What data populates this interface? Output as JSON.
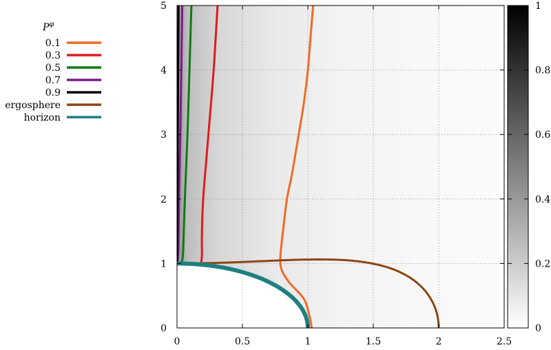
{
  "chart_data": {
    "type": "line",
    "xlim": [
      0,
      2.5
    ],
    "ylim": [
      0,
      5
    ],
    "x_ticks": [
      "0",
      "0.5",
      "1",
      "1.5",
      "2",
      "2.5"
    ],
    "y_ticks": [
      "0",
      "1",
      "2",
      "3",
      "4",
      "5"
    ],
    "grid": true,
    "background": "grayscale density map of P^φ, dark near the axis, fading to white at larger x",
    "colorbar": {
      "range": [
        0,
        1
      ],
      "ticks": [
        "0",
        "0.2",
        "0.4",
        "0.6",
        "0.8",
        "1"
      ],
      "colormap": "white-to-black"
    },
    "legend": {
      "title": "P",
      "title_superscript": "φ",
      "placement": "outside-left"
    },
    "series": [
      {
        "name": "0.1",
        "color": "#f06a26",
        "points": [
          [
            1.03,
            0.0
          ],
          [
            1.01,
            0.2
          ],
          [
            0.97,
            0.45
          ],
          [
            0.86,
            0.7
          ],
          [
            0.8,
            0.9
          ],
          [
            0.79,
            1.1
          ],
          [
            0.81,
            1.5
          ],
          [
            0.84,
            2.0
          ],
          [
            0.88,
            2.4
          ],
          [
            0.93,
            3.0
          ],
          [
            0.97,
            3.5
          ],
          [
            1.0,
            4.0
          ],
          [
            1.02,
            4.5
          ],
          [
            1.04,
            5.0
          ]
        ]
      },
      {
        "name": "0.3",
        "color": "#e01b1b",
        "points": [
          [
            0.0,
            1.0
          ],
          [
            0.1,
            0.995
          ],
          [
            0.17,
            0.98
          ],
          [
            0.19,
            1.1
          ],
          [
            0.19,
            1.4
          ],
          [
            0.2,
            2.0
          ],
          [
            0.24,
            3.0
          ],
          [
            0.28,
            4.0
          ],
          [
            0.31,
            5.0
          ]
        ]
      },
      {
        "name": "0.5",
        "color": "#0f7a16",
        "points": [
          [
            0.0,
            1.0
          ],
          [
            0.04,
            1.05
          ],
          [
            0.05,
            1.4
          ],
          [
            0.06,
            2.0
          ],
          [
            0.08,
            3.0
          ],
          [
            0.095,
            4.0
          ],
          [
            0.11,
            5.0
          ]
        ]
      },
      {
        "name": "0.7",
        "color": "#7a1a8c",
        "points": [
          [
            0.0,
            1.0
          ],
          [
            0.01,
            1.2
          ],
          [
            0.015,
            2.0
          ],
          [
            0.025,
            3.0
          ],
          [
            0.033,
            4.0
          ],
          [
            0.04,
            5.0
          ]
        ]
      },
      {
        "name": "0.9",
        "color": "#000000",
        "points": [
          [
            0.0,
            1.0
          ],
          [
            0.003,
            2.0
          ],
          [
            0.006,
            3.0
          ],
          [
            0.009,
            4.0
          ],
          [
            0.012,
            5.0
          ]
        ]
      },
      {
        "name": "ergosphere",
        "color": "#8b4513",
        "kind": "ergosphere"
      },
      {
        "name": "horizon",
        "color": "#1f7f80",
        "kind": "horizon"
      }
    ]
  }
}
